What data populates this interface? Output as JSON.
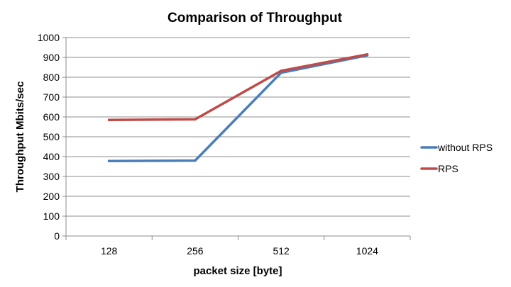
{
  "chart_data": {
    "type": "line",
    "title": "Comparison of Throughput",
    "xlabel": "packet size [byte]",
    "ylabel": "Throughput Mbits/sec",
    "categories": [
      "128",
      "256",
      "512",
      "1024"
    ],
    "ylim": [
      0,
      1000
    ],
    "yticks": [
      0,
      100,
      200,
      300,
      400,
      500,
      600,
      700,
      800,
      900,
      1000
    ],
    "grid": true,
    "legend_position": "right",
    "series": [
      {
        "name": "without RPS",
        "color": "#4a7ebb",
        "values": [
          378,
          380,
          823,
          910
        ]
      },
      {
        "name": "RPS",
        "color": "#be4b48",
        "values": [
          585,
          588,
          832,
          915
        ]
      }
    ]
  }
}
